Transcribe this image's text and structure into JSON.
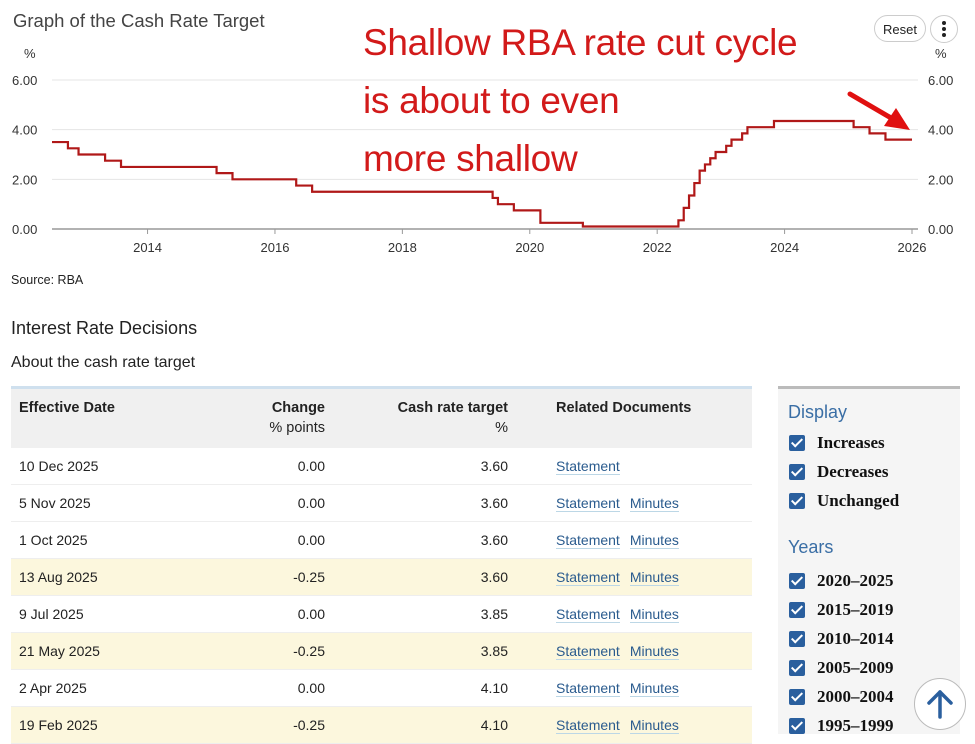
{
  "chart": {
    "title": "Graph of the Cash Rate Target",
    "unit_left": "%",
    "unit_right": "%",
    "reset_label": "Reset",
    "menu_icon": "more-vertical-icon",
    "source": "Source: RBA"
  },
  "annotation": {
    "lines": [
      "Shallow RBA rate cut cycle",
      "is about to even",
      "more shallow"
    ],
    "color": "#d21a1a",
    "arrow_icon": "red-arrow"
  },
  "chart_data": {
    "type": "line",
    "step": true,
    "line_color": "#b01818",
    "xlim": [
      "2012-07",
      "2026-01"
    ],
    "ylim": [
      0,
      6
    ],
    "x_ticks": [
      "2014",
      "2016",
      "2018",
      "2020",
      "2022",
      "2024",
      "2026"
    ],
    "y_ticks": [
      "0.00",
      "2.00",
      "4.00",
      "6.00"
    ],
    "grid": true,
    "points": [
      [
        "2012-07",
        3.5
      ],
      [
        "2012-10",
        3.25
      ],
      [
        "2012-12",
        3.0
      ],
      [
        "2013-05",
        2.75
      ],
      [
        "2013-08",
        2.5
      ],
      [
        "2015-02",
        2.25
      ],
      [
        "2015-05",
        2.0
      ],
      [
        "2016-05",
        1.75
      ],
      [
        "2016-08",
        1.5
      ],
      [
        "2019-06",
        1.25
      ],
      [
        "2019-07",
        1.0
      ],
      [
        "2019-10",
        0.75
      ],
      [
        "2020-03",
        0.5
      ],
      [
        "2020-03",
        0.25
      ],
      [
        "2020-11",
        0.1
      ],
      [
        "2022-05",
        0.35
      ],
      [
        "2022-06",
        0.85
      ],
      [
        "2022-07",
        1.35
      ],
      [
        "2022-08",
        1.85
      ],
      [
        "2022-09",
        2.35
      ],
      [
        "2022-10",
        2.6
      ],
      [
        "2022-11",
        2.85
      ],
      [
        "2022-12",
        3.1
      ],
      [
        "2023-02",
        3.35
      ],
      [
        "2023-03",
        3.6
      ],
      [
        "2023-05",
        3.85
      ],
      [
        "2023-06",
        4.1
      ],
      [
        "2023-11",
        4.35
      ],
      [
        "2025-02",
        4.1
      ],
      [
        "2025-05",
        3.85
      ],
      [
        "2025-08",
        3.6
      ],
      [
        "2025-12",
        3.6
      ]
    ]
  },
  "section": {
    "heading": "Interest Rate Decisions",
    "subheading": "About the cash rate target"
  },
  "table": {
    "headers": {
      "date": "Effective Date",
      "change": "Change",
      "change_unit": "% points",
      "rate": "Cash rate target",
      "rate_unit": "%",
      "docs": "Related Documents"
    },
    "rows": [
      {
        "date": "10 Dec 2025",
        "change": "0.00",
        "rate": "3.60",
        "docs": [
          "Statement"
        ],
        "decrease": false
      },
      {
        "date": "5 Nov 2025",
        "change": "0.00",
        "rate": "3.60",
        "docs": [
          "Statement",
          "Minutes"
        ],
        "decrease": false
      },
      {
        "date": "1 Oct 2025",
        "change": "0.00",
        "rate": "3.60",
        "docs": [
          "Statement",
          "Minutes"
        ],
        "decrease": false
      },
      {
        "date": "13 Aug 2025",
        "change": "-0.25",
        "rate": "3.60",
        "docs": [
          "Statement",
          "Minutes"
        ],
        "decrease": true
      },
      {
        "date": "9 Jul 2025",
        "change": "0.00",
        "rate": "3.85",
        "docs": [
          "Statement",
          "Minutes"
        ],
        "decrease": false
      },
      {
        "date": "21 May 2025",
        "change": "-0.25",
        "rate": "3.85",
        "docs": [
          "Statement",
          "Minutes"
        ],
        "decrease": true
      },
      {
        "date": "2 Apr 2025",
        "change": "0.00",
        "rate": "4.10",
        "docs": [
          "Statement",
          "Minutes"
        ],
        "decrease": false
      },
      {
        "date": "19 Feb 2025",
        "change": "-0.25",
        "rate": "4.10",
        "docs": [
          "Statement",
          "Minutes"
        ],
        "decrease": true
      }
    ],
    "decrease_row_color": "#fcf7dd"
  },
  "sidebar": {
    "display_heading": "Display",
    "display_options": [
      {
        "label": "Increases",
        "checked": true
      },
      {
        "label": "Decreases",
        "checked": true
      },
      {
        "label": "Unchanged",
        "checked": true
      }
    ],
    "years_heading": "Years",
    "year_options": [
      {
        "label": "2020–2025",
        "checked": true
      },
      {
        "label": "2015–2019",
        "checked": true
      },
      {
        "label": "2010–2014",
        "checked": true
      },
      {
        "label": "2005–2009",
        "checked": true
      },
      {
        "label": "2000–2004",
        "checked": true
      },
      {
        "label": "1995–1999",
        "checked": true
      }
    ],
    "accent": "#2a5f9e"
  },
  "scroll_top": {
    "icon": "arrow-up-icon"
  }
}
